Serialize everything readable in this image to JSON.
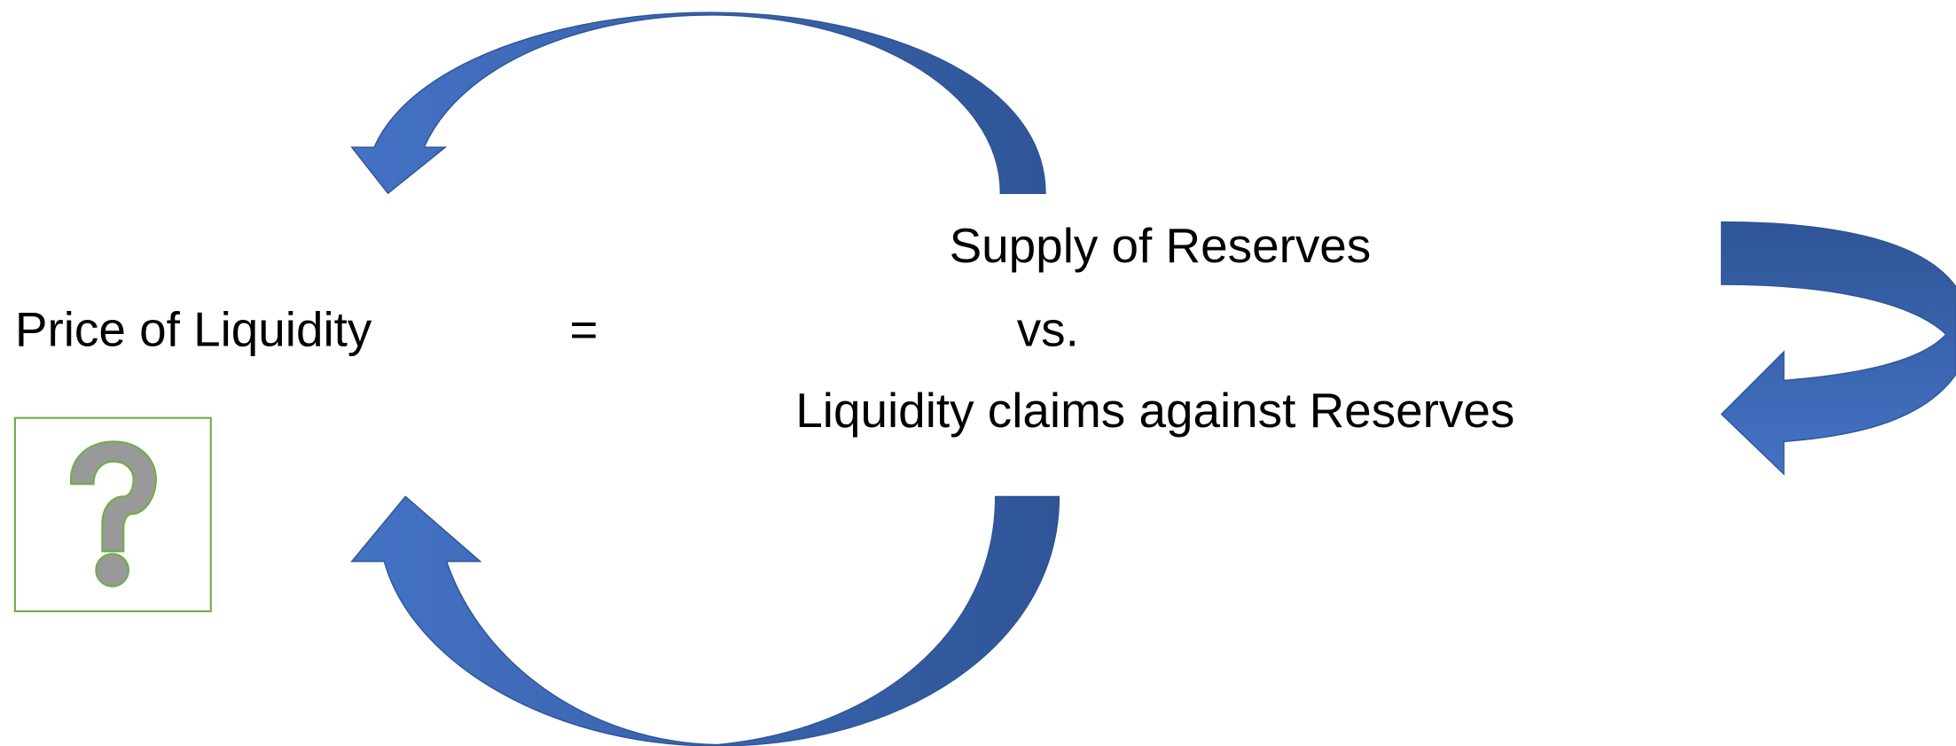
{
  "left_label": "Price of Liquidity",
  "equals": "=",
  "right_lines": [
    "Supply of Reserves",
    "vs.",
    "Liquidity claims against Reserves"
  ]
}
